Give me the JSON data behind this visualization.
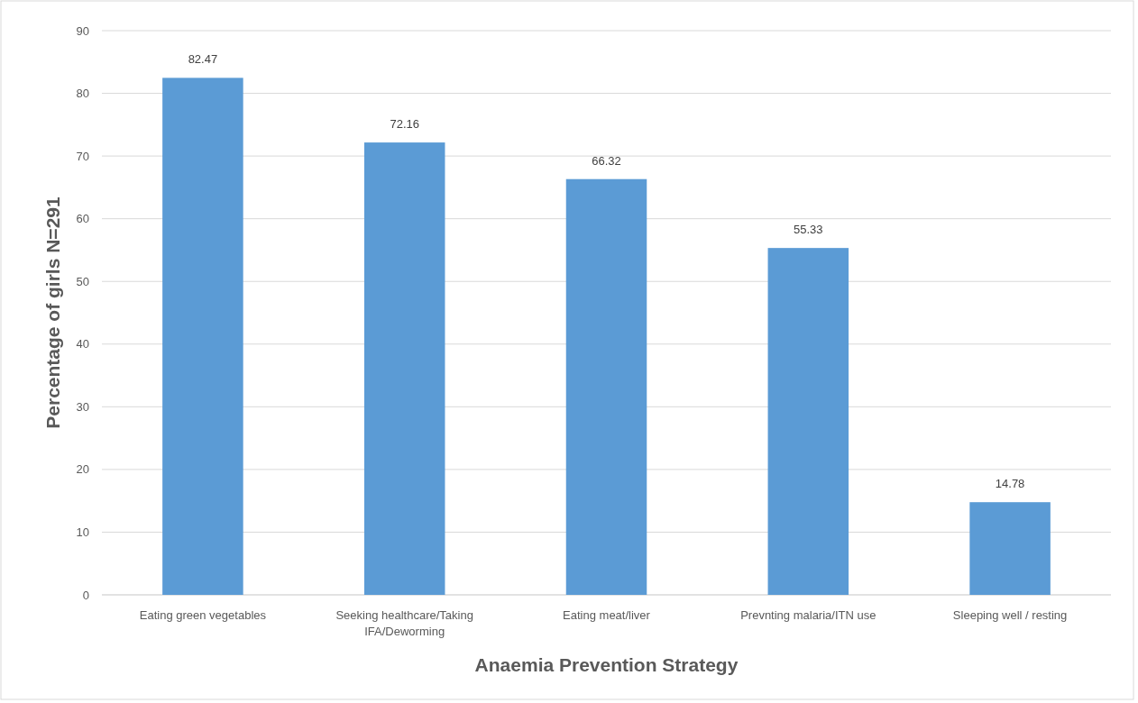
{
  "chart_data": {
    "type": "bar",
    "xlabel": "Anaemia Prevention Strategy",
    "ylabel": "Percentage of girls N=291",
    "categories": [
      "Eating green vegetables",
      "Seeking healthcare/Taking IFA/Deworming",
      "Eating meat/liver",
      "Prevnting malaria/ITN use",
      "Sleeping well / resting"
    ],
    "values": [
      82.47,
      72.16,
      66.32,
      55.33,
      14.78
    ],
    "color": "#5b9bd5",
    "ylim": [
      0,
      90
    ],
    "yticks": [
      0,
      10,
      20,
      30,
      40,
      50,
      60,
      70,
      80,
      90
    ],
    "grid": "y",
    "data_labels": true
  }
}
